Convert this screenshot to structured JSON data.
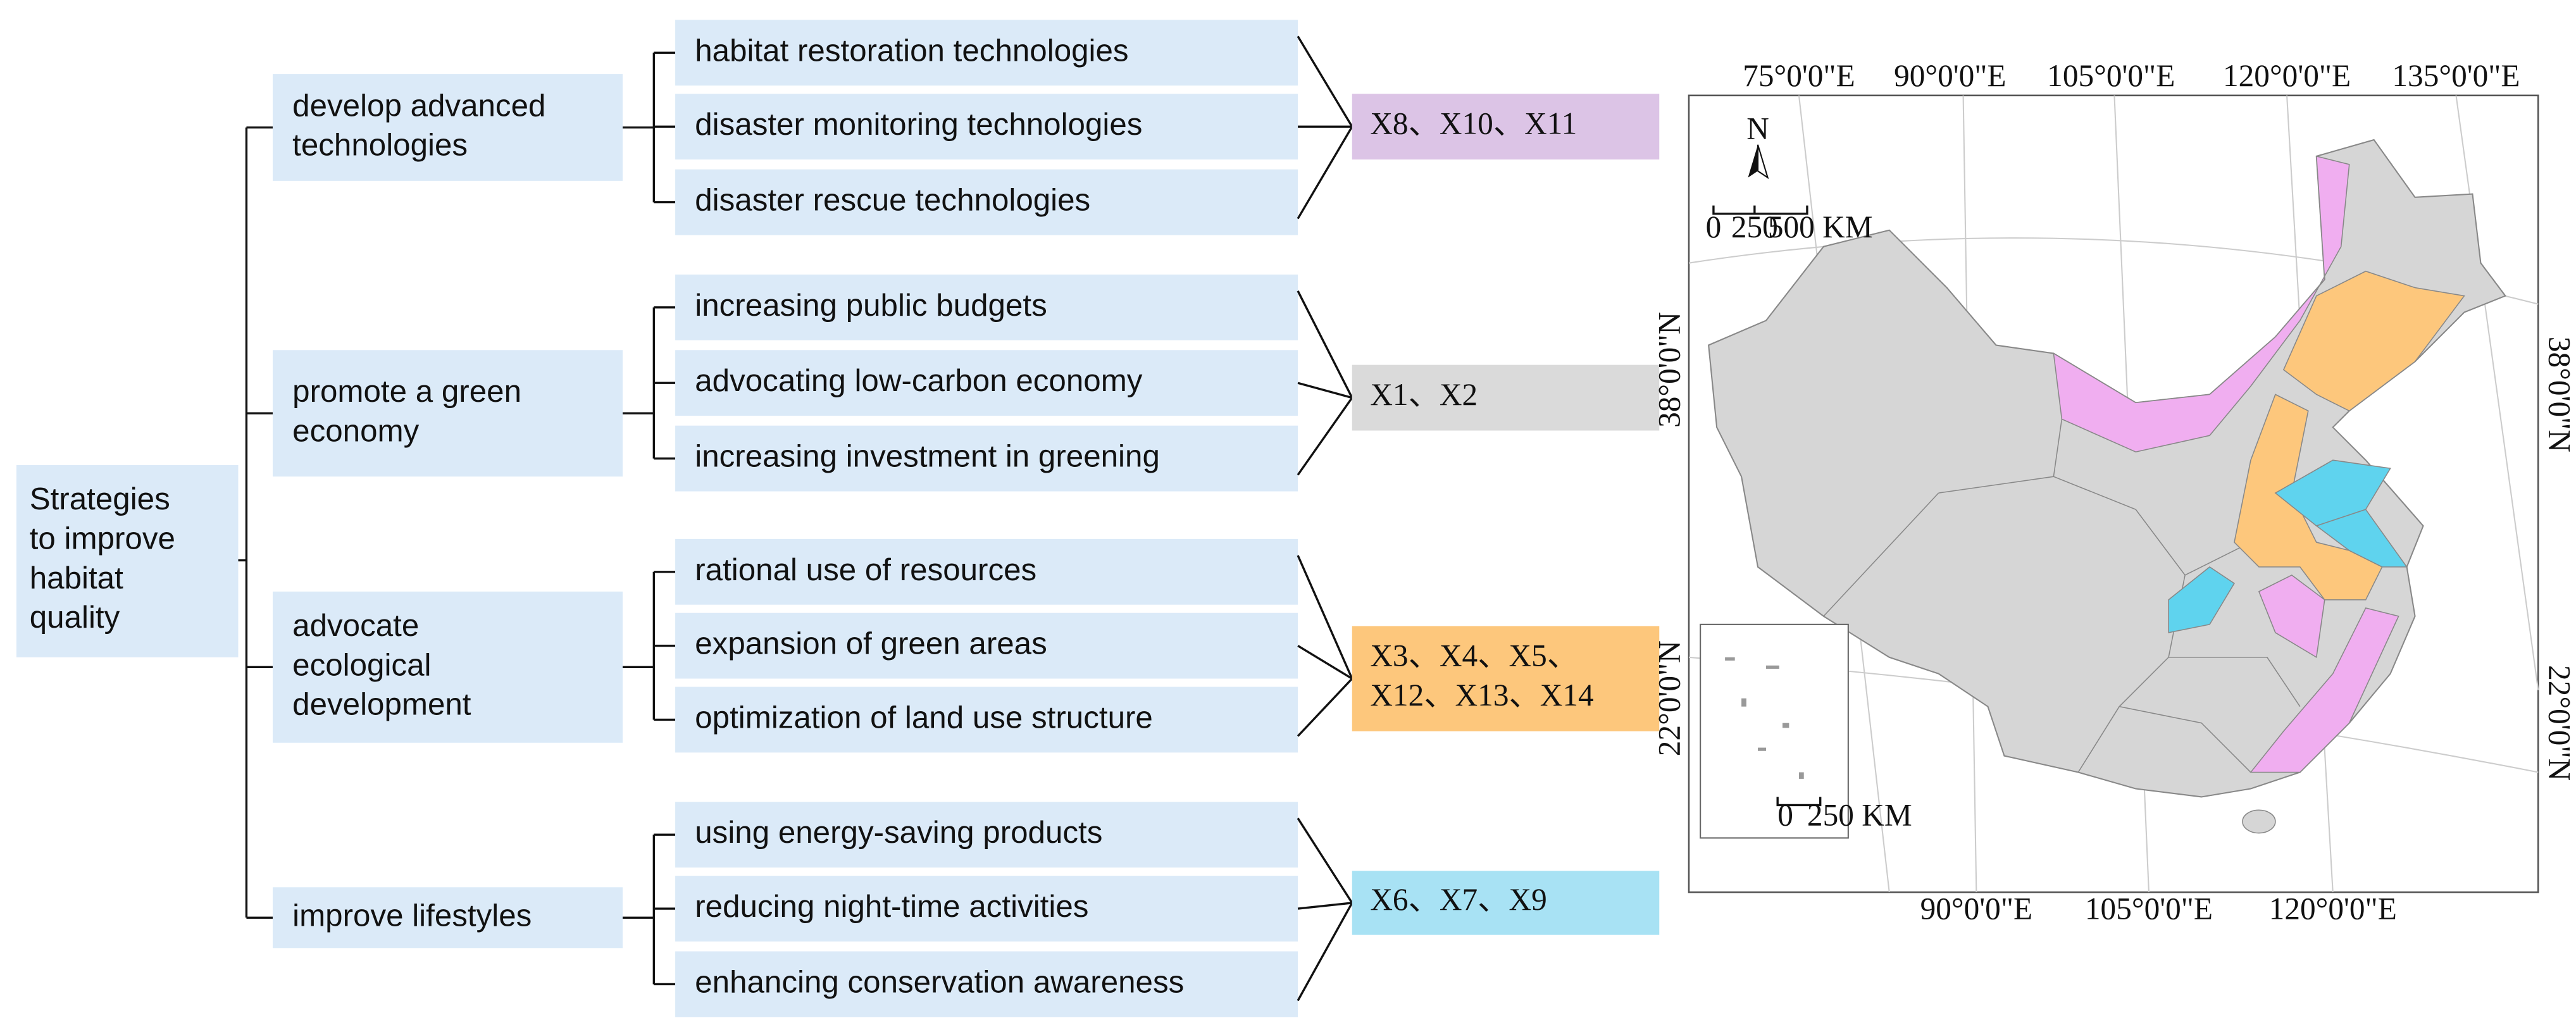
{
  "root": {
    "lines": [
      "Strategies",
      "to improve",
      "habitat",
      "quality"
    ]
  },
  "branches": [
    {
      "lines": [
        "develop advanced",
        "technologies"
      ],
      "items": [
        "habitat restoration technologies",
        "disaster monitoring technologies",
        "disaster rescue technologies"
      ],
      "factors": [
        "X8、X10、X11"
      ],
      "color": "#dcc4e6"
    },
    {
      "lines": [
        "promote a green",
        "economy"
      ],
      "items": [
        "increasing public budgets",
        "advocating low-carbon economy",
        "increasing investment in greening"
      ],
      "factors": [
        "X1、X2"
      ],
      "color": "#dadada"
    },
    {
      "lines": [
        "advocate",
        "ecological",
        "development"
      ],
      "items": [
        "rational use of resources",
        "expansion of green areas",
        "optimization of land use structure"
      ],
      "factors": [
        "X3、X4、X5、",
        "X12、X13、X14"
      ],
      "color": "#fdc77c"
    },
    {
      "lines": [
        "improve lifestyles"
      ],
      "items": [
        "using energy-saving products",
        "reducing night-time activities",
        "enhancing conservation awareness"
      ],
      "factors": [
        "X6、X7、X9"
      ],
      "color": "#a8e2f4"
    }
  ],
  "map": {
    "top_lon": [
      "75°0'0\"E",
      "90°0'0\"E",
      "105°0'0\"E",
      "120°0'0\"E",
      "135°0'0\"E"
    ],
    "bottom_lon": [
      "90°0'0\"E",
      "105°0'0\"E",
      "120°0'0\"E"
    ],
    "left_lat": [
      "38°0'0\"N",
      "22°0'0\"N"
    ],
    "right_lat": [
      "38°0'0\"N",
      "22°0'0\"N"
    ],
    "north": "N",
    "scale": [
      "0",
      "250",
      "500 KM"
    ],
    "inset_scale": [
      "0",
      "250 KM"
    ]
  }
}
